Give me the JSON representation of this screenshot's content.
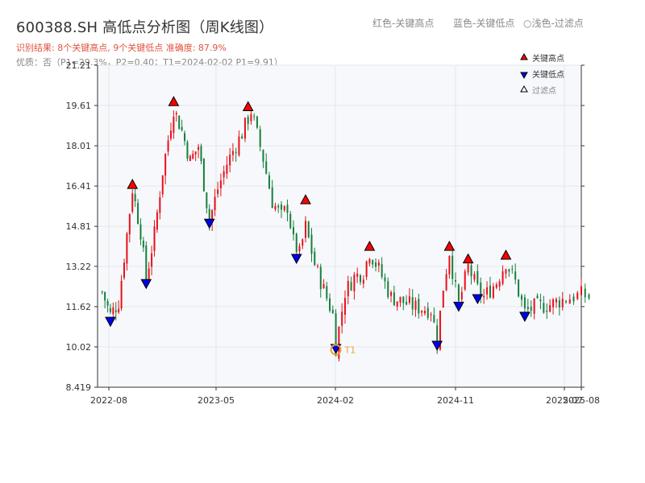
{
  "header": {
    "title": "600388.SH 高低点分析图（周K线图）",
    "subtitle_result": "识别结果: 8个关键高点, 9个关键低点   准确度: 87.9%",
    "subtitle_quality": "优质：否（P1=29.3%，P2=0.40；T1=2024-02-02 P1=9.91）",
    "legend_top": [
      "红色-关键高点",
      "蓝色-关键低点",
      "○浅色-过滤点"
    ]
  },
  "chart_data": {
    "type": "candlestick",
    "title": "600388.SH 高低点分析图（周K线图）",
    "ylim": [
      8.419,
      21.21
    ],
    "yticks": [
      8.419,
      10.02,
      11.62,
      13.22,
      14.81,
      16.41,
      18.01,
      19.61,
      21.21
    ],
    "ytick_labels": [
      "8.419",
      "10.02",
      "11.62",
      "13.22",
      "14.81",
      "16.41",
      "18.01",
      "19.61",
      "21.21"
    ],
    "xticks": [
      {
        "date": "2022-08",
        "label": "2022-08"
      },
      {
        "date": "2023-05",
        "label": "2023-05"
      },
      {
        "date": "2024-02",
        "label": "2024-02"
      },
      {
        "date": "2024-11",
        "label": "2024-11"
      },
      {
        "date": "2025-07",
        "label": "2025-07"
      },
      {
        "date": "2025-08",
        "label": "2025-08"
      }
    ],
    "grid": true,
    "legend_position": "top-right",
    "legend": [
      {
        "label": "关键高点",
        "color": "#ff0000",
        "marker": "triangle-up"
      },
      {
        "label": "关键低点",
        "color": "#0000ee",
        "marker": "triangle-down"
      },
      {
        "label": "过滤点",
        "color": "#ffffff",
        "marker": "triangle-up"
      }
    ],
    "colors": {
      "up": "#e8101a",
      "down": "#15803d",
      "high_marker": "#ff0000",
      "low_marker": "#0000ee",
      "t1": "#e8a33d"
    },
    "price_path": [
      [
        "2022-07-15",
        12.2
      ],
      [
        "2022-08-05",
        11.3
      ],
      [
        "2022-08-26",
        11.8
      ],
      [
        "2022-09-16",
        14.5
      ],
      [
        "2022-09-30",
        16.3
      ],
      [
        "2022-10-21",
        14.6
      ],
      [
        "2022-11-04",
        12.7
      ],
      [
        "2022-11-25",
        14.5
      ],
      [
        "2022-12-16",
        17.0
      ],
      [
        "2023-01-13",
        19.5
      ],
      [
        "2023-02-03",
        18.6
      ],
      [
        "2023-02-24",
        17.4
      ],
      [
        "2023-03-17",
        18.0
      ],
      [
        "2023-04-14",
        15.0
      ],
      [
        "2023-05-05",
        16.3
      ],
      [
        "2023-05-26",
        17.3
      ],
      [
        "2023-06-09",
        17.8
      ],
      [
        "2023-06-30",
        18.5
      ],
      [
        "2023-07-21",
        19.4
      ],
      [
        "2023-08-18",
        17.5
      ],
      [
        "2023-09-08",
        15.8
      ],
      [
        "2023-09-29",
        15.2
      ],
      [
        "2023-10-13",
        15.6
      ],
      [
        "2023-10-27",
        14.2
      ],
      [
        "2023-11-10",
        13.7
      ],
      [
        "2023-11-24",
        14.8
      ],
      [
        "2023-12-15",
        13.3
      ],
      [
        "2024-01-05",
        12.3
      ],
      [
        "2024-01-26",
        11.3
      ],
      [
        "2024-02-02",
        10.0
      ],
      [
        "2024-02-23",
        12.2
      ],
      [
        "2024-03-15",
        12.8
      ],
      [
        "2024-04-05",
        13.0
      ],
      [
        "2024-04-19",
        13.8
      ],
      [
        "2024-05-10",
        13.1
      ],
      [
        "2024-06-07",
        12.0
      ],
      [
        "2024-07-05",
        11.8
      ],
      [
        "2024-08-02",
        11.6
      ],
      [
        "2024-09-06",
        11.5
      ],
      [
        "2024-09-20",
        10.3
      ],
      [
        "2024-10-04",
        12.4
      ],
      [
        "2024-10-18",
        13.8
      ],
      [
        "2024-11-01",
        12.3
      ],
      [
        "2024-11-08",
        11.7
      ],
      [
        "2024-11-29",
        13.2
      ],
      [
        "2024-12-20",
        12.3
      ],
      [
        "2025-01-03",
        12.0
      ],
      [
        "2025-01-31",
        12.6
      ],
      [
        "2025-02-21",
        13.4
      ],
      [
        "2025-03-14",
        12.6
      ],
      [
        "2025-04-04",
        11.4
      ],
      [
        "2025-04-25",
        11.6
      ],
      [
        "2025-05-30",
        11.7
      ],
      [
        "2025-06-27",
        11.9
      ],
      [
        "2025-08-01",
        12.1
      ],
      [
        "2025-08-15",
        12.0
      ]
    ],
    "key_highs": [
      {
        "date": "2022-09-30",
        "value": 16.41
      },
      {
        "date": "2023-01-13",
        "value": 19.7
      },
      {
        "date": "2023-07-14",
        "value": 19.5
      },
      {
        "date": "2023-11-24",
        "value": 15.8
      },
      {
        "date": "2024-04-19",
        "value": 13.95
      },
      {
        "date": "2024-10-18",
        "value": 13.95
      },
      {
        "date": "2024-11-29",
        "value": 13.45
      },
      {
        "date": "2025-02-21",
        "value": 13.6
      }
    ],
    "key_lows": [
      {
        "date": "2022-08-05",
        "value": 11.1
      },
      {
        "date": "2022-11-04",
        "value": 12.6
      },
      {
        "date": "2023-04-14",
        "value": 15.0
      },
      {
        "date": "2023-11-03",
        "value": 13.6
      },
      {
        "date": "2024-02-02",
        "value": 10.02
      },
      {
        "date": "2024-09-20",
        "value": 10.15
      },
      {
        "date": "2024-11-08",
        "value": 11.7
      },
      {
        "date": "2024-12-20",
        "value": 12.0
      },
      {
        "date": "2025-04-04",
        "value": 11.3
      }
    ],
    "t1": {
      "date": "2024-02-02",
      "value": 9.91,
      "label": "T1"
    }
  }
}
